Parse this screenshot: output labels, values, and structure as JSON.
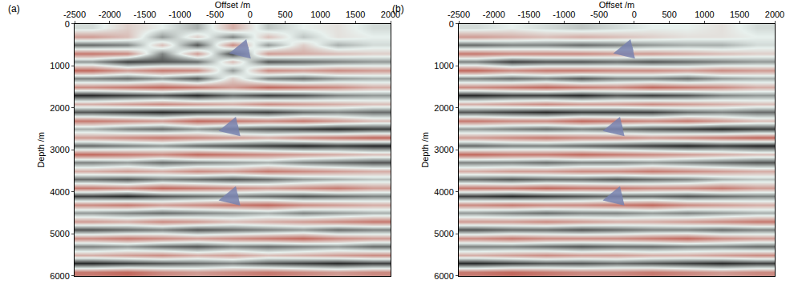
{
  "chart_data": [
    {
      "type": "heatmap",
      "title": "(a)",
      "x_label": "Offset /m",
      "y_label": "Depth /m",
      "xlim": [
        -2500,
        2000
      ],
      "xticks": [
        -2500,
        -2000,
        -1500,
        -1000,
        -500,
        0,
        500,
        1000,
        1500,
        2000
      ],
      "ylim": [
        0,
        6000
      ],
      "yticks": [
        0,
        1000,
        2000,
        3000,
        4000,
        5000,
        6000
      ],
      "zlim": [
        -1,
        1
      ],
      "colors": [
        "#b8473a",
        "#e8f1ee",
        "#141414"
      ],
      "x": [
        -2250,
        -1750,
        -1250,
        -750,
        -250,
        250,
        750,
        1250,
        1750
      ],
      "y": [
        100,
        300,
        500,
        700,
        900,
        1100,
        1300,
        1500,
        1700,
        1900,
        2100,
        2300,
        2500,
        2700,
        2900,
        3100,
        3300,
        3500,
        3700,
        3900,
        4100,
        4300,
        4500,
        4700,
        4900,
        5100,
        5300,
        5500,
        5700,
        5900
      ],
      "z": [
        [
          0.1,
          -0.2,
          0.0,
          0.3,
          -0.4,
          0.2,
          0.0,
          -0.1,
          0.1
        ],
        [
          -0.5,
          -0.3,
          0.4,
          -0.2,
          0.5,
          -0.3,
          0.2,
          -0.1,
          0.0
        ],
        [
          0.6,
          0.5,
          -0.3,
          0.7,
          -0.6,
          0.4,
          -0.2,
          0.3,
          0.1
        ],
        [
          -0.7,
          -0.6,
          0.5,
          -0.5,
          0.8,
          -0.5,
          -0.4,
          -0.3,
          -0.2
        ],
        [
          0.4,
          0.8,
          0.7,
          0.6,
          -0.3,
          0.7,
          0.6,
          0.5,
          0.4
        ],
        [
          -0.8,
          -0.5,
          -0.7,
          -0.6,
          0.4,
          -0.6,
          -0.5,
          -0.6,
          -0.5
        ],
        [
          0.5,
          0.6,
          0.4,
          0.7,
          -0.2,
          0.5,
          0.6,
          0.4,
          0.3
        ],
        [
          -0.6,
          -0.7,
          -0.8,
          -0.7,
          -0.5,
          -0.8,
          -0.7,
          -0.6,
          -0.4
        ],
        [
          0.9,
          0.8,
          0.7,
          0.9,
          0.6,
          0.8,
          0.7,
          0.5,
          0.4
        ],
        [
          -0.4,
          -0.5,
          -0.6,
          -0.5,
          -0.4,
          -0.6,
          -0.5,
          -0.4,
          -0.3
        ],
        [
          0.7,
          0.8,
          0.9,
          0.8,
          0.7,
          0.8,
          0.6,
          0.5,
          0.6
        ],
        [
          -0.7,
          -0.6,
          -0.5,
          -0.8,
          -0.7,
          -0.6,
          -0.7,
          -0.5,
          -0.3
        ],
        [
          0.3,
          0.5,
          0.6,
          0.4,
          0.6,
          0.7,
          0.8,
          0.9,
          0.8
        ],
        [
          -0.5,
          -0.6,
          -0.7,
          -0.6,
          -0.5,
          -0.4,
          -0.6,
          -0.7,
          -0.8
        ],
        [
          0.6,
          0.5,
          0.4,
          0.6,
          0.7,
          0.8,
          0.9,
          0.8,
          0.9
        ],
        [
          -0.8,
          -0.7,
          -0.6,
          -0.8,
          -0.7,
          -0.6,
          -0.5,
          -0.4,
          -0.3
        ],
        [
          0.5,
          0.4,
          0.6,
          0.5,
          0.4,
          0.3,
          0.5,
          0.6,
          0.7
        ],
        [
          -0.4,
          -0.5,
          -0.4,
          -0.6,
          -0.5,
          -0.7,
          -0.6,
          -0.5,
          -0.4
        ],
        [
          0.6,
          0.7,
          0.5,
          0.6,
          0.7,
          0.6,
          0.4,
          0.3,
          0.2
        ],
        [
          -0.7,
          -0.6,
          -0.8,
          -0.7,
          -0.6,
          -0.5,
          -0.6,
          -0.7,
          -0.5
        ],
        [
          0.8,
          0.9,
          0.7,
          0.6,
          0.5,
          0.6,
          0.7,
          0.6,
          0.5
        ],
        [
          -0.6,
          -0.7,
          -0.5,
          -0.6,
          -0.7,
          -0.8,
          -0.6,
          -0.5,
          -0.4
        ],
        [
          0.4,
          0.5,
          0.6,
          0.5,
          0.4,
          0.3,
          0.5,
          0.4,
          0.3
        ],
        [
          -0.5,
          -0.4,
          -0.6,
          -0.5,
          -0.3,
          -0.4,
          -0.5,
          -0.6,
          -0.7
        ],
        [
          0.7,
          0.6,
          0.5,
          0.7,
          0.6,
          0.5,
          0.4,
          0.6,
          0.5
        ],
        [
          -0.6,
          -0.7,
          -0.6,
          -0.5,
          -0.6,
          -0.7,
          -0.8,
          -0.6,
          -0.5
        ],
        [
          0.5,
          0.4,
          0.6,
          0.7,
          0.5,
          0.6,
          0.5,
          0.4,
          0.6
        ],
        [
          -0.4,
          -0.5,
          -0.6,
          -0.4,
          -0.5,
          -0.3,
          -0.4,
          -0.5,
          -0.6
        ],
        [
          0.9,
          0.8,
          0.7,
          0.6,
          0.5,
          0.7,
          0.8,
          0.9,
          0.8
        ],
        [
          -0.7,
          -0.8,
          -0.6,
          -0.5,
          -0.6,
          -0.7,
          -0.6,
          -0.5,
          -0.6
        ]
      ],
      "arrows": [
        {
          "x": -300,
          "y": 700
        },
        {
          "x": -450,
          "y": 2550
        },
        {
          "x": -450,
          "y": 4200
        }
      ]
    },
    {
      "type": "heatmap",
      "title": "(b)",
      "x_label": "Offset /m",
      "y_label": "Depth /m",
      "xlim": [
        -2500,
        2000
      ],
      "xticks": [
        -2500,
        -2000,
        -1500,
        -1000,
        -500,
        0,
        500,
        1000,
        1500,
        2000
      ],
      "ylim": [
        0,
        6000
      ],
      "yticks": [
        0,
        1000,
        2000,
        3000,
        4000,
        5000,
        6000
      ],
      "zlim": [
        -1,
        1
      ],
      "colors": [
        "#b8473a",
        "#e8f1ee",
        "#141414"
      ],
      "x": [
        -2250,
        -1750,
        -1250,
        -750,
        -250,
        250,
        750,
        1250,
        1750
      ],
      "y": [
        100,
        300,
        500,
        700,
        900,
        1100,
        1300,
        1500,
        1700,
        1900,
        2100,
        2300,
        2500,
        2700,
        2900,
        3100,
        3300,
        3500,
        3700,
        3900,
        4100,
        4300,
        4500,
        4700,
        4900,
        5100,
        5300,
        5500,
        5700,
        5900
      ],
      "z": [
        [
          0.1,
          0.0,
          0.1,
          0.2,
          0.1,
          0.0,
          0.0,
          -0.1,
          0.1
        ],
        [
          -0.5,
          -0.4,
          -0.3,
          -0.4,
          -0.3,
          -0.2,
          -0.1,
          -0.1,
          0.0
        ],
        [
          0.6,
          0.5,
          0.5,
          0.6,
          0.5,
          0.4,
          0.3,
          0.3,
          0.1
        ],
        [
          -0.7,
          -0.6,
          -0.6,
          -0.6,
          -0.5,
          -0.5,
          -0.4,
          -0.3,
          -0.2
        ],
        [
          0.5,
          0.8,
          0.7,
          0.7,
          0.6,
          0.7,
          0.6,
          0.5,
          0.4
        ],
        [
          -0.8,
          -0.6,
          -0.7,
          -0.7,
          -0.6,
          -0.6,
          -0.5,
          -0.6,
          -0.5
        ],
        [
          0.5,
          0.6,
          0.5,
          0.7,
          0.5,
          0.5,
          0.6,
          0.4,
          0.3
        ],
        [
          -0.6,
          -0.7,
          -0.8,
          -0.7,
          -0.6,
          -0.8,
          -0.7,
          -0.6,
          -0.4
        ],
        [
          0.9,
          0.8,
          0.8,
          0.9,
          0.7,
          0.8,
          0.7,
          0.5,
          0.4
        ],
        [
          -0.4,
          -0.5,
          -0.6,
          -0.5,
          -0.5,
          -0.6,
          -0.5,
          -0.4,
          -0.3
        ],
        [
          0.7,
          0.8,
          0.9,
          0.8,
          0.8,
          0.8,
          0.6,
          0.5,
          0.6
        ],
        [
          -0.7,
          -0.6,
          -0.6,
          -0.8,
          -0.7,
          -0.6,
          -0.7,
          -0.5,
          -0.3
        ],
        [
          0.4,
          0.5,
          0.6,
          0.5,
          0.6,
          0.7,
          0.8,
          0.9,
          0.8
        ],
        [
          -0.5,
          -0.6,
          -0.7,
          -0.6,
          -0.6,
          -0.5,
          -0.6,
          -0.7,
          -0.8
        ],
        [
          0.6,
          0.5,
          0.5,
          0.6,
          0.7,
          0.8,
          0.9,
          0.8,
          0.9
        ],
        [
          -0.8,
          -0.7,
          -0.7,
          -0.8,
          -0.7,
          -0.6,
          -0.5,
          -0.4,
          -0.3
        ],
        [
          0.5,
          0.5,
          0.6,
          0.5,
          0.5,
          0.4,
          0.5,
          0.6,
          0.7
        ],
        [
          -0.4,
          -0.5,
          -0.5,
          -0.6,
          -0.6,
          -0.7,
          -0.6,
          -0.5,
          -0.4
        ],
        [
          0.6,
          0.7,
          0.6,
          0.6,
          0.7,
          0.6,
          0.5,
          0.3,
          0.2
        ],
        [
          -0.7,
          -0.7,
          -0.8,
          -0.7,
          -0.7,
          -0.6,
          -0.6,
          -0.7,
          -0.5
        ],
        [
          0.8,
          0.9,
          0.8,
          0.7,
          0.6,
          0.6,
          0.7,
          0.6,
          0.5
        ],
        [
          -0.6,
          -0.7,
          -0.6,
          -0.6,
          -0.7,
          -0.8,
          -0.6,
          -0.5,
          -0.4
        ],
        [
          0.4,
          0.5,
          0.6,
          0.5,
          0.5,
          0.4,
          0.5,
          0.4,
          0.3
        ],
        [
          -0.5,
          -0.5,
          -0.6,
          -0.5,
          -0.4,
          -0.4,
          -0.5,
          -0.6,
          -0.7
        ],
        [
          0.7,
          0.6,
          0.6,
          0.7,
          0.6,
          0.5,
          0.5,
          0.6,
          0.5
        ],
        [
          -0.6,
          -0.7,
          -0.6,
          -0.6,
          -0.6,
          -0.7,
          -0.8,
          -0.6,
          -0.5
        ],
        [
          0.5,
          0.5,
          0.6,
          0.7,
          0.6,
          0.6,
          0.5,
          0.5,
          0.6
        ],
        [
          -0.4,
          -0.5,
          -0.6,
          -0.5,
          -0.5,
          -0.4,
          -0.4,
          -0.5,
          -0.6
        ],
        [
          0.9,
          0.8,
          0.7,
          0.7,
          0.6,
          0.7,
          0.8,
          0.9,
          0.8
        ],
        [
          -0.7,
          -0.8,
          -0.7,
          -0.6,
          -0.6,
          -0.7,
          -0.6,
          -0.5,
          -0.6
        ]
      ],
      "arrows": [
        {
          "x": -300,
          "y": 700
        },
        {
          "x": -450,
          "y": 2550
        },
        {
          "x": -450,
          "y": 4200
        }
      ]
    }
  ]
}
